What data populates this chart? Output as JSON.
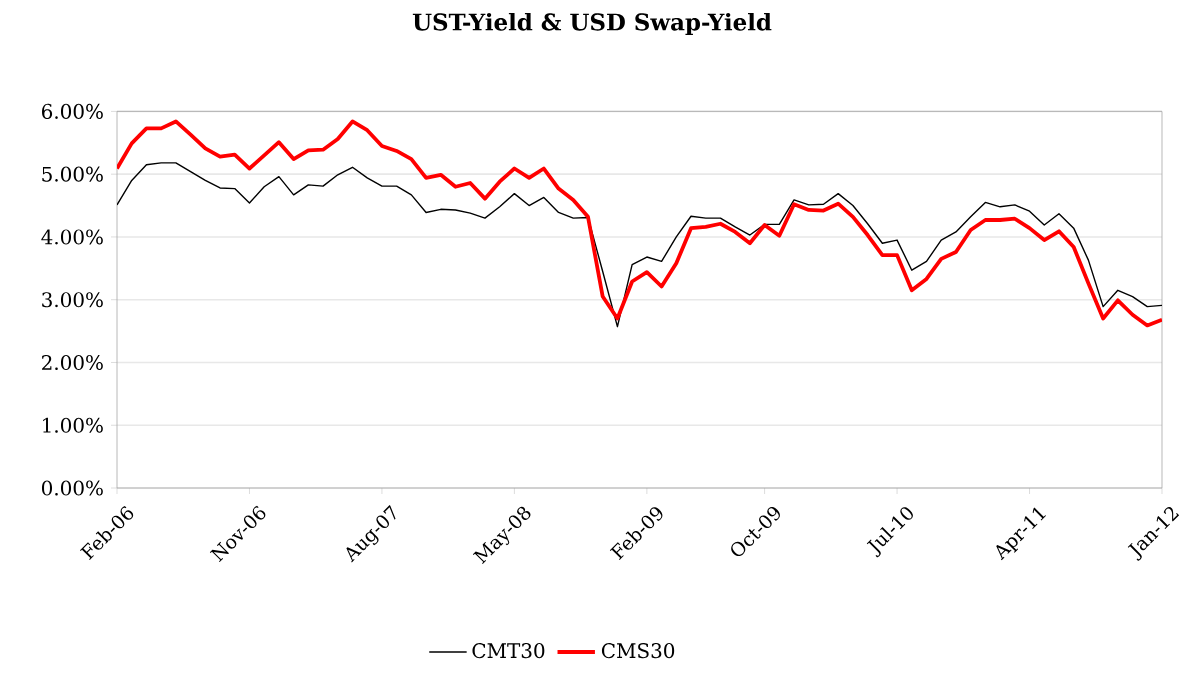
{
  "chart_data": {
    "type": "line",
    "title": "UST-Yield & USD Swap-Yield",
    "x": [
      "2006-02",
      "2006-03",
      "2006-04",
      "2006-05",
      "2006-06",
      "2006-07",
      "2006-08",
      "2006-09",
      "2006-10",
      "2006-11",
      "2006-12",
      "2007-01",
      "2007-02",
      "2007-03",
      "2007-04",
      "2007-05",
      "2007-06",
      "2007-07",
      "2007-08",
      "2007-09",
      "2007-10",
      "2007-11",
      "2007-12",
      "2008-01",
      "2008-02",
      "2008-03",
      "2008-04",
      "2008-05",
      "2008-06",
      "2008-07",
      "2008-08",
      "2008-09",
      "2008-10",
      "2008-11",
      "2008-12",
      "2009-01",
      "2009-02",
      "2009-03",
      "2009-04",
      "2009-05",
      "2009-06",
      "2009-07",
      "2009-08",
      "2009-09",
      "2009-10",
      "2009-11",
      "2009-12",
      "2010-01",
      "2010-02",
      "2010-03",
      "2010-04",
      "2010-05",
      "2010-06",
      "2010-07",
      "2010-08",
      "2010-09",
      "2010-10",
      "2010-11",
      "2010-12",
      "2011-01",
      "2011-02",
      "2011-03",
      "2011-04",
      "2011-05",
      "2011-06",
      "2011-07",
      "2011-08",
      "2011-09",
      "2011-10",
      "2011-11",
      "2011-12",
      "2012-01"
    ],
    "series": [
      {
        "name": "CMT30",
        "color": "#000000",
        "values": [
          4.51,
          4.9,
          5.15,
          5.18,
          5.18,
          5.04,
          4.9,
          4.78,
          4.77,
          4.54,
          4.8,
          4.96,
          4.67,
          4.83,
          4.81,
          4.99,
          5.11,
          4.94,
          4.81,
          4.81,
          4.67,
          4.39,
          4.44,
          4.43,
          4.38,
          4.3,
          4.48,
          4.69,
          4.5,
          4.63,
          4.39,
          4.3,
          4.31,
          3.45,
          2.57,
          3.56,
          3.68,
          3.61,
          4.0,
          4.33,
          4.3,
          4.3,
          4.16,
          4.03,
          4.2,
          4.2,
          4.59,
          4.51,
          4.52,
          4.69,
          4.5,
          4.21,
          3.9,
          3.95,
          3.47,
          3.61,
          3.95,
          4.08,
          4.32,
          4.55,
          4.48,
          4.51,
          4.41,
          4.19,
          4.37,
          4.14,
          3.63,
          2.89,
          3.15,
          3.05,
          2.89,
          2.91
        ]
      },
      {
        "name": "CMS30",
        "color": "#ff0000",
        "values": [
          5.09,
          5.49,
          5.73,
          5.73,
          5.84,
          5.63,
          5.41,
          5.28,
          5.31,
          5.09,
          5.3,
          5.51,
          5.24,
          5.38,
          5.39,
          5.56,
          5.84,
          5.7,
          5.45,
          5.37,
          5.24,
          4.94,
          4.99,
          4.8,
          4.86,
          4.61,
          4.88,
          5.09,
          4.94,
          5.09,
          4.77,
          4.59,
          4.32,
          3.05,
          2.7,
          3.29,
          3.44,
          3.21,
          3.58,
          4.14,
          4.16,
          4.21,
          4.08,
          3.9,
          4.19,
          4.02,
          4.52,
          4.43,
          4.42,
          4.53,
          4.32,
          4.03,
          3.71,
          3.71,
          3.15,
          3.33,
          3.65,
          3.76,
          4.11,
          4.27,
          4.27,
          4.29,
          4.14,
          3.95,
          4.09,
          3.84,
          3.26,
          2.7,
          2.99,
          2.76,
          2.59,
          2.68
        ]
      }
    ],
    "xlim": [
      "2006-02",
      "2012-01"
    ],
    "xticks": [
      {
        "value": "2006-02",
        "label": "Feb-06"
      },
      {
        "value": "2006-11",
        "label": "Nov-06"
      },
      {
        "value": "2007-08",
        "label": "Aug-07"
      },
      {
        "value": "2008-05",
        "label": "May-08"
      },
      {
        "value": "2009-02",
        "label": "Feb-09"
      },
      {
        "value": "2009-10",
        "label": "Oct-09"
      },
      {
        "value": "2010-07",
        "label": "Jul-10"
      },
      {
        "value": "2011-04",
        "label": "Apr-11"
      },
      {
        "value": "2012-01",
        "label": "Jan-12"
      }
    ],
    "ylim": [
      0,
      6
    ],
    "yticks": [
      {
        "value": 0,
        "label": "0.00%"
      },
      {
        "value": 1,
        "label": "1.00%"
      },
      {
        "value": 2,
        "label": "2.00%"
      },
      {
        "value": 3,
        "label": "3.00%"
      },
      {
        "value": 4,
        "label": "4.00%"
      },
      {
        "value": 5,
        "label": "5.00%"
      },
      {
        "value": 6,
        "label": "6.00%"
      }
    ],
    "grid": "y",
    "legend": "bottom",
    "line_style": "solid",
    "marker": "none"
  }
}
